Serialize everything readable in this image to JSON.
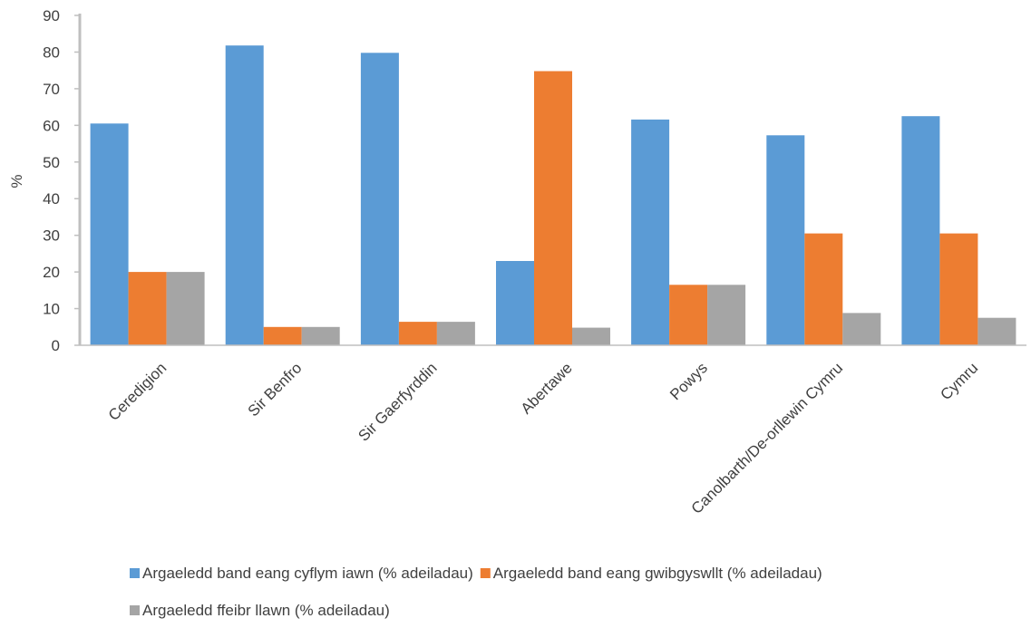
{
  "chart_data": {
    "type": "bar",
    "ylabel": "%",
    "xlabel": "",
    "ylim": [
      0,
      90
    ],
    "ytick_step": 10,
    "grid": false,
    "legend_position": "bottom",
    "categories": [
      "Ceredigion",
      "Sir Benfro",
      "Sir Gaerfyrddin",
      "Abertawe",
      "Powys",
      "Canolbarth/De-orllewin Cymru",
      "Cymru"
    ],
    "series": [
      {
        "name": "Argaeledd band eang cyflym iawn (% adeiladau)",
        "color": "#5b9bd5",
        "values": [
          60.5,
          81.8,
          79.8,
          23.0,
          61.6,
          57.3,
          62.5
        ]
      },
      {
        "name": "Argaeledd band eang gwibgyswllt (% adeiladau)",
        "color": "#ed7d31",
        "values": [
          20.0,
          5.0,
          6.4,
          74.8,
          16.5,
          30.5,
          30.5
        ]
      },
      {
        "name": "Argaeledd ffeibr llawn (% adeiladau)",
        "color": "#a5a5a5",
        "values": [
          20.0,
          5.0,
          6.4,
          4.8,
          16.5,
          8.8,
          7.5
        ]
      }
    ]
  }
}
